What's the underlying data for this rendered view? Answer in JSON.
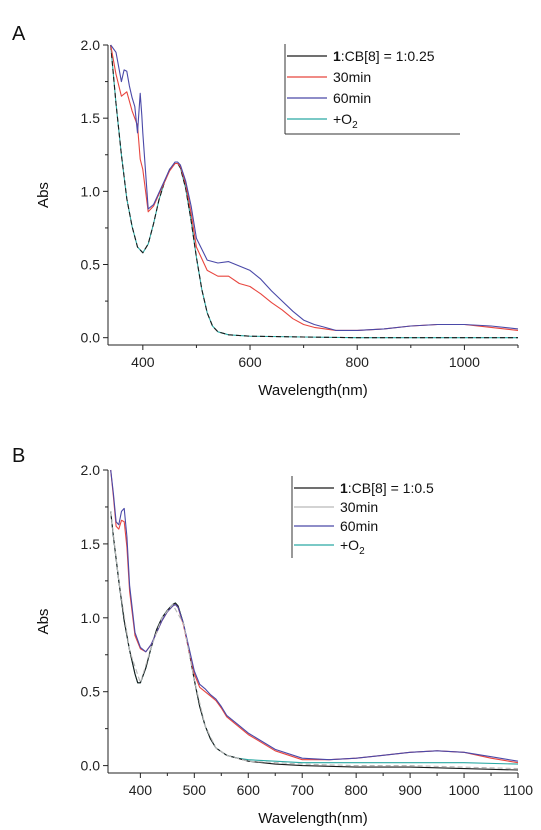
{
  "figure": {
    "panels": [
      "A",
      "B"
    ]
  },
  "colors": {
    "black": "#1a1a1a",
    "red": "#e8463f",
    "blue": "#4a49a8",
    "cyan": "#2aa9a4",
    "grey": "#b9b9b9",
    "axis": "#222222"
  },
  "chart_data": [
    {
      "type": "line",
      "panel_label": "A",
      "xlabel": "Wavelength(nm)",
      "ylabel": "Abs",
      "xlim": [
        335,
        1100
      ],
      "ylim": [
        -0.05,
        2.0
      ],
      "xticks": [
        400,
        600,
        800,
        1000
      ],
      "xtick_labels": [
        "400",
        "600",
        "800",
        "1000"
      ],
      "yticks": [
        0.0,
        0.5,
        1.0,
        1.5,
        2.0
      ],
      "ytick_labels": [
        "0.0",
        "0.5",
        "1.0",
        "1.5",
        "2.0"
      ],
      "grid": false,
      "legend_position": "top-right",
      "legend_entries": [
        {
          "bold": "1",
          "label": ":CB[8] = 1:0.25",
          "color": "#1a1a1a"
        },
        {
          "bold": "",
          "label": "30min",
          "color": "#e8463f"
        },
        {
          "bold": "",
          "label": "60min",
          "color": "#4a49a8"
        },
        {
          "bold": "",
          "label": "+O",
          "sub": "2",
          "color": "#2aa9a4"
        }
      ],
      "series": [
        {
          "color": "#2aa9a4",
          "style": "solid",
          "x": [
            340,
            350,
            360,
            370,
            380,
            390,
            400,
            410,
            420,
            430,
            440,
            450,
            460,
            465,
            470,
            480,
            490,
            500,
            510,
            520,
            530,
            540,
            560,
            600,
            700,
            800,
            900,
            1000,
            1100
          ],
          "y": [
            2.0,
            1.6,
            1.25,
            0.95,
            0.76,
            0.62,
            0.58,
            0.64,
            0.78,
            0.94,
            1.06,
            1.15,
            1.19,
            1.19,
            1.16,
            1.02,
            0.8,
            0.55,
            0.33,
            0.17,
            0.08,
            0.04,
            0.02,
            0.01,
            0.005,
            0.0,
            0.0,
            0.0,
            0.0
          ]
        },
        {
          "color": "#1a1a1a",
          "style": "dashed",
          "x": [
            340,
            350,
            360,
            370,
            380,
            390,
            400,
            410,
            420,
            430,
            440,
            450,
            460,
            465,
            470,
            480,
            490,
            500,
            510,
            520,
            530,
            540,
            560,
            600,
            700,
            800,
            900,
            1000,
            1100
          ],
          "y": [
            2.0,
            1.6,
            1.25,
            0.95,
            0.76,
            0.62,
            0.58,
            0.64,
            0.78,
            0.94,
            1.06,
            1.15,
            1.19,
            1.19,
            1.16,
            1.02,
            0.8,
            0.55,
            0.33,
            0.17,
            0.08,
            0.04,
            0.02,
            0.01,
            0.005,
            0.0,
            0.0,
            0.0,
            0.0
          ]
        },
        {
          "color": "#e8463f",
          "style": "solid",
          "x": [
            340,
            350,
            360,
            370,
            380,
            390,
            395,
            400,
            410,
            420,
            430,
            440,
            450,
            460,
            465,
            470,
            480,
            490,
            500,
            520,
            540,
            560,
            580,
            600,
            620,
            640,
            660,
            680,
            700,
            720,
            740,
            760,
            800,
            850,
            900,
            950,
            1000,
            1050,
            1100
          ],
          "y": [
            2.0,
            1.8,
            1.65,
            1.68,
            1.55,
            1.45,
            1.22,
            1.15,
            0.86,
            0.9,
            0.98,
            1.06,
            1.14,
            1.19,
            1.19,
            1.17,
            1.05,
            0.85,
            0.62,
            0.46,
            0.42,
            0.42,
            0.37,
            0.35,
            0.3,
            0.24,
            0.19,
            0.13,
            0.09,
            0.07,
            0.06,
            0.05,
            0.05,
            0.06,
            0.08,
            0.09,
            0.09,
            0.07,
            0.05
          ]
        },
        {
          "color": "#4a49a8",
          "style": "solid",
          "x": [
            340,
            350,
            360,
            365,
            370,
            375,
            380,
            385,
            390,
            395,
            398,
            400,
            410,
            420,
            430,
            440,
            450,
            460,
            465,
            470,
            480,
            490,
            500,
            520,
            540,
            560,
            580,
            600,
            620,
            640,
            660,
            680,
            700,
            720,
            740,
            760,
            800,
            850,
            900,
            950,
            1000,
            1050,
            1100
          ],
          "y": [
            2.0,
            1.95,
            1.75,
            1.83,
            1.82,
            1.72,
            1.64,
            1.58,
            1.4,
            1.67,
            1.52,
            1.4,
            0.88,
            0.91,
            0.99,
            1.07,
            1.15,
            1.2,
            1.2,
            1.18,
            1.07,
            0.9,
            0.68,
            0.53,
            0.51,
            0.52,
            0.49,
            0.46,
            0.4,
            0.32,
            0.25,
            0.18,
            0.12,
            0.09,
            0.07,
            0.05,
            0.05,
            0.06,
            0.08,
            0.09,
            0.09,
            0.08,
            0.06
          ]
        }
      ]
    },
    {
      "type": "line",
      "panel_label": "B",
      "xlabel": "Wavelength(nm)",
      "ylabel": "Abs",
      "xlim": [
        340,
        1100
      ],
      "ylim": [
        -0.05,
        2.0
      ],
      "xticks": [
        400,
        500,
        600,
        700,
        800,
        900,
        1000,
        1100
      ],
      "xtick_labels": [
        "400",
        "500",
        "600",
        "700",
        "800",
        "900",
        "1000",
        "1100"
      ],
      "yticks": [
        0.0,
        0.5,
        1.0,
        1.5,
        2.0
      ],
      "ytick_labels": [
        "0.0",
        "0.5",
        "1.0",
        "1.5",
        "2.0"
      ],
      "grid": false,
      "legend_position": "top-right",
      "legend_entries": [
        {
          "bold": "1",
          "label": ":CB[8] = 1:0.5",
          "color": "#1a1a1a"
        },
        {
          "bold": "",
          "label": "30min",
          "color": "#b9b9b9"
        },
        {
          "bold": "",
          "label": "60min",
          "color": "#4a49a8"
        },
        {
          "bold": "",
          "label": "+O",
          "sub": "2",
          "color": "#2aa9a4"
        }
      ],
      "series": [
        {
          "color": "#2aa9a4",
          "style": "solid",
          "x": [
            345,
            350,
            360,
            370,
            380,
            390,
            395,
            400,
            410,
            420,
            430,
            440,
            450,
            460,
            465,
            470,
            480,
            490,
            500,
            510,
            520,
            530,
            540,
            560,
            580,
            600,
            650,
            700,
            800,
            900,
            1000,
            1100
          ],
          "y": [
            1.72,
            1.55,
            1.25,
            0.98,
            0.78,
            0.62,
            0.56,
            0.56,
            0.66,
            0.8,
            0.92,
            1.0,
            1.05,
            1.09,
            1.1,
            1.08,
            0.96,
            0.78,
            0.58,
            0.4,
            0.27,
            0.18,
            0.12,
            0.07,
            0.05,
            0.04,
            0.03,
            0.02,
            0.02,
            0.02,
            0.02,
            0.01
          ]
        },
        {
          "color": "#1a1a1a",
          "style": "solid",
          "x": [
            345,
            350,
            360,
            370,
            380,
            390,
            395,
            400,
            410,
            420,
            430,
            440,
            450,
            460,
            465,
            470,
            480,
            490,
            500,
            510,
            520,
            530,
            540,
            560,
            580,
            600,
            650,
            700,
            800,
            900,
            1000,
            1100
          ],
          "y": [
            1.72,
            1.55,
            1.25,
            0.98,
            0.78,
            0.62,
            0.56,
            0.56,
            0.66,
            0.8,
            0.92,
            1.0,
            1.05,
            1.09,
            1.1,
            1.08,
            0.96,
            0.78,
            0.58,
            0.4,
            0.27,
            0.18,
            0.12,
            0.07,
            0.05,
            0.03,
            0.01,
            0.0,
            -0.01,
            -0.01,
            -0.02,
            -0.03
          ]
        },
        {
          "color": "#e8463f",
          "style": "solid",
          "x": [
            345,
            350,
            355,
            360,
            365,
            370,
            375,
            380,
            390,
            400,
            410,
            420,
            430,
            440,
            450,
            460,
            465,
            470,
            480,
            490,
            500,
            510,
            520,
            530,
            540,
            550,
            560,
            580,
            600,
            650,
            700,
            750,
            800,
            850,
            900,
            950,
            1000,
            1050,
            1100
          ],
          "y": [
            2.0,
            1.82,
            1.62,
            1.6,
            1.66,
            1.65,
            1.48,
            1.18,
            0.88,
            0.79,
            0.77,
            0.82,
            0.9,
            0.98,
            1.04,
            1.08,
            1.09,
            1.07,
            0.95,
            0.78,
            0.62,
            0.53,
            0.5,
            0.47,
            0.44,
            0.39,
            0.33,
            0.27,
            0.21,
            0.1,
            0.04,
            0.04,
            0.05,
            0.07,
            0.09,
            0.1,
            0.09,
            0.05,
            0.02
          ]
        },
        {
          "color": "#4a49a8",
          "style": "solid",
          "x": [
            345,
            350,
            355,
            360,
            365,
            370,
            375,
            380,
            390,
            400,
            410,
            420,
            430,
            440,
            450,
            460,
            465,
            470,
            480,
            490,
            500,
            510,
            520,
            530,
            540,
            550,
            560,
            580,
            600,
            650,
            700,
            750,
            800,
            850,
            900,
            950,
            1000,
            1050,
            1100
          ],
          "y": [
            2.0,
            1.84,
            1.65,
            1.63,
            1.72,
            1.74,
            1.55,
            1.22,
            0.9,
            0.8,
            0.77,
            0.82,
            0.9,
            0.98,
            1.04,
            1.08,
            1.09,
            1.07,
            0.96,
            0.8,
            0.64,
            0.55,
            0.52,
            0.48,
            0.45,
            0.4,
            0.34,
            0.28,
            0.22,
            0.11,
            0.05,
            0.04,
            0.05,
            0.07,
            0.09,
            0.1,
            0.09,
            0.06,
            0.03
          ]
        },
        {
          "color": "#b9b9b9",
          "style": "dashed",
          "x": [
            345,
            360,
            380,
            400,
            420,
            440,
            460,
            480,
            500,
            520,
            540,
            560,
            600,
            700,
            800,
            900,
            1000,
            1100
          ],
          "y": [
            1.72,
            1.25,
            0.78,
            0.56,
            0.8,
            1.0,
            1.09,
            0.96,
            0.58,
            0.27,
            0.12,
            0.07,
            0.03,
            0.01,
            0.0,
            0.0,
            -0.01,
            -0.02
          ]
        }
      ]
    }
  ]
}
